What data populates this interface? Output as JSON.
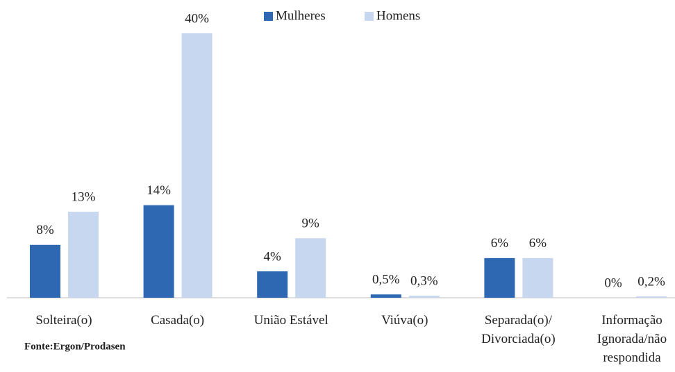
{
  "chart_data": {
    "type": "bar",
    "categories": [
      "Solteira(o)",
      "Casada(o)",
      "União Estável",
      "Viúva(o)",
      "Separada(o)/\nDivorciada(o)",
      "Informação\nIgnorada/não\nrespondida"
    ],
    "series": [
      {
        "name": "Mulheres",
        "color": "#2e67b2",
        "values": [
          8,
          14,
          4,
          0.5,
          6,
          0
        ],
        "value_labels": [
          "8%",
          "14%",
          "4%",
          "0,5%",
          "6%",
          "0%"
        ]
      },
      {
        "name": "Homens",
        "color": "#c6d7ef",
        "values": [
          13,
          40,
          9,
          0.3,
          6,
          0.2
        ],
        "value_labels": [
          "13%",
          "40%",
          "9%",
          "0,3%",
          "6%",
          "0,2%"
        ]
      }
    ],
    "ylim": [
      0,
      40
    ],
    "source": "Fonte:Ergon/Prodasen"
  }
}
